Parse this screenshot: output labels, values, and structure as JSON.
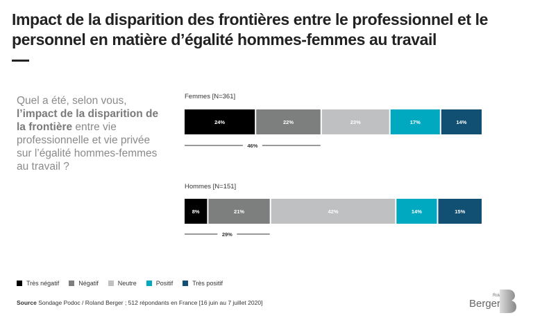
{
  "title": "Impact de la disparition des frontières entre le professionnel et le personnel en matière d’égalité hommes-femmes au travail",
  "question": {
    "part1": "Quel a été, selon vous, ",
    "bold": "l’impact de la disparition de la frontière",
    "part2": " entre vie professionnelle et vie privée sur l’égalité hommes-femmes au travail ?"
  },
  "chart_data": {
    "type": "bar",
    "orientation": "horizontal-stacked-100",
    "categories": [
      "Très négatif",
      "Négatif",
      "Neutre",
      "Positif",
      "Très positif"
    ],
    "colors": [
      "#000000",
      "#7d7f7f",
      "#bfc0c2",
      "#00a9bf",
      "#114f73"
    ],
    "groups": [
      {
        "label": "Femmes [N=361]",
        "values": [
          24,
          22,
          23,
          17,
          14
        ],
        "labels": [
          "24%",
          "22%",
          "23%",
          "17%",
          "14%"
        ],
        "bracket_label": "46%",
        "bracket_span": 2
      },
      {
        "label": "Hommes [N=151]",
        "values": [
          8,
          21,
          42,
          14,
          15
        ],
        "labels": [
          "8%",
          "21%",
          "42%",
          "14%",
          "15%"
        ],
        "bracket_label": "29%",
        "bracket_span": 2
      }
    ],
    "legend_position": "bottom-left",
    "xlim": [
      0,
      100
    ]
  },
  "legend": [
    {
      "label": "Très négatif",
      "color": "#000000"
    },
    {
      "label": "Négatif",
      "color": "#7d7f7f"
    },
    {
      "label": "Neutre",
      "color": "#bfc0c2"
    },
    {
      "label": "Positif",
      "color": "#00a9bf"
    },
    {
      "label": "Très positif",
      "color": "#114f73"
    }
  ],
  "source": {
    "label": "Source",
    "text": " Sondage Podoc / Roland Berger ; 512 répondants en France [16 juin au 7 juillet 2020]"
  },
  "logo": {
    "small": "Roland",
    "main": "Berger"
  }
}
